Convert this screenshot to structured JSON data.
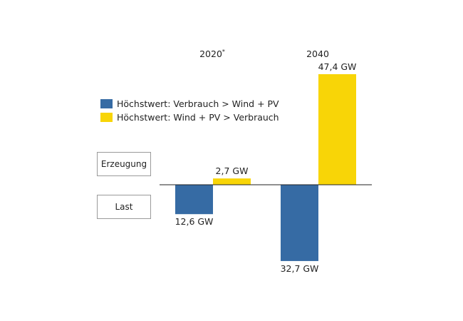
{
  "chart_data": {
    "type": "bar",
    "categories": [
      "2020*",
      "2040"
    ],
    "series": [
      {
        "name": "Höchstwert: Verbrauch > Wind + PV",
        "color": "#366ba4",
        "values": [
          -12.6,
          -32.7
        ],
        "labels": [
          "12,6 GW",
          "32,7 GW"
        ]
      },
      {
        "name": "Höchstwert: Wind + PV > Verbrauch",
        "color": "#f8d507",
        "values": [
          2.7,
          47.4
        ],
        "labels": [
          "2,7 GW",
          "47,4 GW"
        ]
      }
    ],
    "xlabel": "",
    "ylabel": "",
    "ylim": [
      -35,
      50
    ],
    "legend_position": "top-left",
    "grid": false
  },
  "side_labels": {
    "positive": "Erzeugung",
    "negative": "Last"
  }
}
